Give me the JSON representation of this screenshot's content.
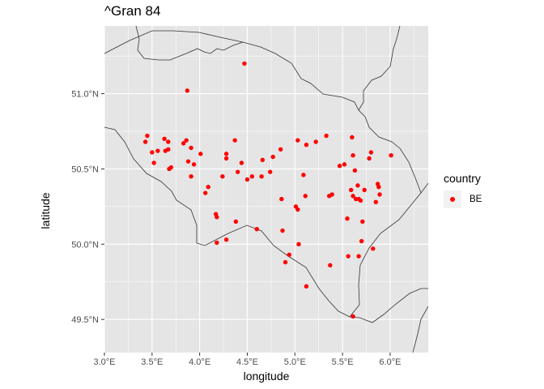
{
  "chart_data": {
    "type": "scatter",
    "title": "^Gran 84",
    "xlabel": "longitude",
    "ylabel": "latitude",
    "xlim": [
      3.0,
      6.4
    ],
    "ylim": [
      49.28,
      51.45
    ],
    "x_ticks": [
      3.0,
      3.5,
      4.0,
      4.5,
      5.0,
      5.5,
      6.0
    ],
    "x_tick_labels": [
      "3.0°E",
      "3.5°E",
      "4.0°E",
      "4.5°E",
      "5.0°E",
      "5.5°E",
      "6.0°E"
    ],
    "y_ticks": [
      49.5,
      50.0,
      50.5,
      51.0
    ],
    "y_tick_labels": [
      "49.5°N",
      "50.0°N",
      "50.5°N",
      "51.0°N"
    ],
    "grid": true,
    "legend": {
      "title": "country",
      "placement": "right",
      "entries": [
        {
          "label": "BE",
          "color": "#ff0000"
        }
      ]
    },
    "series": [
      {
        "name": "BE",
        "color": "#ff0000",
        "points": [
          [
            4.47,
            51.2
          ],
          [
            3.87,
            51.02
          ],
          [
            3.43,
            50.68
          ],
          [
            3.45,
            50.72
          ],
          [
            3.5,
            50.61
          ],
          [
            3.52,
            50.54
          ],
          [
            3.56,
            50.62
          ],
          [
            3.63,
            50.7
          ],
          [
            3.64,
            50.62
          ],
          [
            3.67,
            50.68
          ],
          [
            3.67,
            50.63
          ],
          [
            3.68,
            50.5
          ],
          [
            3.7,
            50.51
          ],
          [
            3.83,
            50.67
          ],
          [
            3.86,
            50.69
          ],
          [
            3.88,
            50.55
          ],
          [
            3.91,
            50.64
          ],
          [
            3.91,
            50.45
          ],
          [
            3.94,
            50.53
          ],
          [
            4.01,
            50.6
          ],
          [
            4.06,
            50.34
          ],
          [
            4.09,
            50.38
          ],
          [
            4.17,
            50.2
          ],
          [
            4.18,
            50.18
          ],
          [
            4.18,
            50.01
          ],
          [
            4.24,
            50.45
          ],
          [
            4.28,
            50.6
          ],
          [
            4.28,
            50.57
          ],
          [
            4.28,
            50.03
          ],
          [
            4.37,
            50.69
          ],
          [
            4.38,
            50.15
          ],
          [
            4.4,
            50.48
          ],
          [
            4.44,
            50.54
          ],
          [
            4.5,
            50.43
          ],
          [
            4.55,
            50.45
          ],
          [
            4.6,
            50.1
          ],
          [
            4.65,
            50.45
          ],
          [
            4.66,
            50.56
          ],
          [
            4.74,
            50.48
          ],
          [
            4.77,
            50.58
          ],
          [
            4.85,
            50.63
          ],
          [
            4.86,
            50.3
          ],
          [
            4.87,
            50.09
          ],
          [
            4.9,
            49.88
          ],
          [
            4.94,
            49.93
          ],
          [
            5.01,
            50.25
          ],
          [
            5.03,
            50.69
          ],
          [
            5.03,
            50.23
          ],
          [
            5.04,
            50.0
          ],
          [
            5.09,
            50.46
          ],
          [
            5.11,
            50.32
          ],
          [
            5.12,
            50.66
          ],
          [
            5.12,
            49.72
          ],
          [
            5.22,
            50.68
          ],
          [
            5.33,
            50.72
          ],
          [
            5.36,
            50.32
          ],
          [
            5.37,
            49.86
          ],
          [
            5.39,
            50.33
          ],
          [
            5.47,
            50.52
          ],
          [
            5.52,
            50.53
          ],
          [
            5.55,
            50.17
          ],
          [
            5.56,
            49.92
          ],
          [
            5.59,
            50.36
          ],
          [
            5.6,
            50.71
          ],
          [
            5.61,
            50.59
          ],
          [
            5.61,
            50.32
          ],
          [
            5.61,
            49.52
          ],
          [
            5.63,
            50.49
          ],
          [
            5.64,
            50.3
          ],
          [
            5.66,
            50.39
          ],
          [
            5.67,
            50.3
          ],
          [
            5.67,
            49.92
          ],
          [
            5.69,
            50.29
          ],
          [
            5.7,
            50.02
          ],
          [
            5.71,
            50.15
          ],
          [
            5.73,
            50.36
          ],
          [
            5.78,
            50.57
          ],
          [
            5.8,
            50.61
          ],
          [
            5.82,
            49.97
          ],
          [
            5.85,
            50.28
          ],
          [
            5.87,
            50.4
          ],
          [
            5.88,
            50.38
          ],
          [
            5.89,
            50.33
          ],
          [
            6.01,
            50.59
          ]
        ]
      }
    ],
    "layers": {
      "background": "#e5e5e5",
      "gridline": "#ffffff",
      "border_line": "#333333",
      "point_color": "#ff0000"
    }
  }
}
